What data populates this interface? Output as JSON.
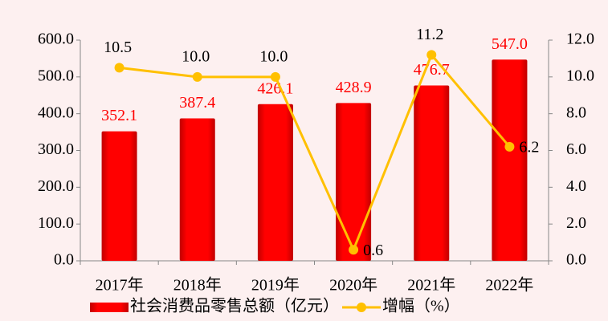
{
  "chart_data": {
    "type": "bar",
    "categories": [
      "2017年",
      "2018年",
      "2019年",
      "2020年",
      "2021年",
      "2022年"
    ],
    "series": [
      {
        "name": "社会消费品零售总额（亿元）",
        "type": "bar",
        "color": "#ff0000",
        "axis": "y",
        "values": [
          352.1,
          387.4,
          426.1,
          428.9,
          476.7,
          547.0
        ],
        "value_labels": [
          "352.1",
          "387.4",
          "426.1",
          "428.9",
          "476.7",
          "547.0"
        ]
      },
      {
        "name": "增幅（%）",
        "type": "line",
        "color": "#ffc000",
        "axis": "y2",
        "values": [
          10.5,
          10.0,
          10.0,
          0.6,
          11.2,
          6.2
        ],
        "value_labels": [
          "10.5",
          "10.0",
          "10.0",
          "0.6",
          "11.2",
          "6.2"
        ]
      }
    ],
    "ylim": [
      0,
      600
    ],
    "yticks": [
      {
        "value": 0,
        "label": "0.0"
      },
      {
        "value": 100,
        "label": "100.0"
      },
      {
        "value": 200,
        "label": "200.0"
      },
      {
        "value": 300,
        "label": "300.0"
      },
      {
        "value": 400,
        "label": "400.0"
      },
      {
        "value": 500,
        "label": "500.0"
      },
      {
        "value": 600,
        "label": "600.0"
      }
    ],
    "y2lim": [
      0,
      12
    ],
    "y2ticks": [
      {
        "value": 0,
        "label": "0.0"
      },
      {
        "value": 2,
        "label": "2.0"
      },
      {
        "value": 4,
        "label": "4.0"
      },
      {
        "value": 6,
        "label": "6.0"
      },
      {
        "value": 8,
        "label": "8.0"
      },
      {
        "value": 10,
        "label": "10.0"
      },
      {
        "value": 12,
        "label": "12.0"
      }
    ],
    "legend": "bottom"
  }
}
